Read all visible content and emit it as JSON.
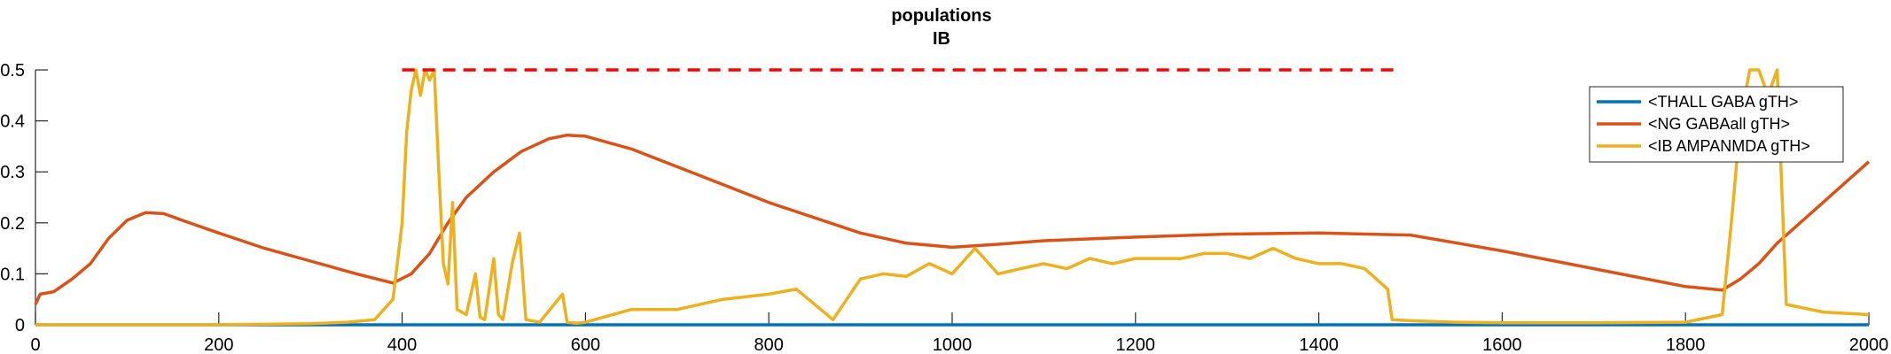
{
  "chart_data": {
    "type": "line",
    "title": "populations",
    "subtitle": "IB",
    "xlabel": "",
    "ylabel": "",
    "xlim": [
      0,
      2000
    ],
    "ylim": [
      0,
      0.5
    ],
    "xticks": [
      0,
      200,
      400,
      600,
      800,
      1000,
      1200,
      1400,
      1600,
      1800,
      2000
    ],
    "yticks": [
      0,
      0.1,
      0.2,
      0.3,
      0.4,
      0.5
    ],
    "ytick_labels": [
      "0",
      "0.1",
      "0.2",
      "0.3",
      "0.4",
      "0.5"
    ],
    "grid": false,
    "legend_position": "top-right",
    "series": [
      {
        "name": "<THALL GABA gTH>",
        "color": "#0072BD",
        "x": [
          0,
          2000
        ],
        "y": [
          0,
          0
        ]
      },
      {
        "name": "<NG GABAall gTH>",
        "color": "#D95319",
        "x": [
          0,
          5,
          20,
          40,
          60,
          80,
          100,
          120,
          140,
          160,
          200,
          250,
          300,
          350,
          390,
          410,
          430,
          450,
          470,
          500,
          530,
          560,
          580,
          600,
          650,
          700,
          800,
          900,
          950,
          1000,
          1050,
          1100,
          1200,
          1300,
          1400,
          1500,
          1600,
          1700,
          1800,
          1840,
          1860,
          1880,
          1900,
          1950,
          2000
        ],
        "y": [
          0.04,
          0.06,
          0.065,
          0.09,
          0.12,
          0.17,
          0.205,
          0.22,
          0.218,
          0.205,
          0.18,
          0.15,
          0.125,
          0.1,
          0.082,
          0.1,
          0.14,
          0.2,
          0.25,
          0.3,
          0.34,
          0.365,
          0.372,
          0.37,
          0.345,
          0.31,
          0.24,
          0.18,
          0.16,
          0.152,
          0.158,
          0.165,
          0.172,
          0.178,
          0.18,
          0.176,
          0.145,
          0.11,
          0.075,
          0.068,
          0.09,
          0.12,
          0.16,
          0.24,
          0.32
        ]
      },
      {
        "name": "<IB AMPANMDA gTH>",
        "color": "#EDB120",
        "x": [
          0,
          100,
          200,
          300,
          340,
          370,
          390,
          400,
          405,
          410,
          415,
          420,
          425,
          430,
          435,
          440,
          445,
          450,
          455,
          460,
          470,
          480,
          485,
          490,
          500,
          505,
          510,
          520,
          528,
          535,
          550,
          575,
          580,
          590,
          600,
          650,
          700,
          750,
          800,
          830,
          870,
          900,
          925,
          950,
          975,
          1000,
          1025,
          1035,
          1050,
          1075,
          1100,
          1125,
          1150,
          1175,
          1200,
          1225,
          1250,
          1275,
          1300,
          1325,
          1350,
          1375,
          1400,
          1425,
          1450,
          1475,
          1480,
          1500,
          1550,
          1600,
          1700,
          1800,
          1840,
          1850,
          1860,
          1870,
          1880,
          1890,
          1900,
          1910,
          1950,
          2000
        ],
        "y": [
          0,
          0,
          0,
          0.002,
          0.005,
          0.01,
          0.05,
          0.2,
          0.38,
          0.46,
          0.5,
          0.45,
          0.5,
          0.48,
          0.5,
          0.3,
          0.12,
          0.08,
          0.24,
          0.03,
          0.02,
          0.1,
          0.015,
          0.01,
          0.13,
          0.02,
          0.01,
          0.12,
          0.18,
          0.01,
          0.005,
          0.06,
          0.005,
          0.003,
          0.005,
          0.03,
          0.03,
          0.05,
          0.06,
          0.07,
          0.01,
          0.09,
          0.1,
          0.095,
          0.12,
          0.1,
          0.15,
          0.13,
          0.1,
          0.11,
          0.12,
          0.11,
          0.13,
          0.12,
          0.13,
          0.13,
          0.13,
          0.14,
          0.14,
          0.13,
          0.15,
          0.13,
          0.12,
          0.12,
          0.11,
          0.07,
          0.01,
          0.008,
          0.005,
          0.004,
          0.004,
          0.005,
          0.02,
          0.2,
          0.4,
          0.5,
          0.5,
          0.45,
          0.5,
          0.04,
          0.025,
          0.02
        ]
      }
    ],
    "reference_line": {
      "color": "#FF0000",
      "style": "dashed",
      "x": [
        400,
        1490
      ],
      "y": [
        0.5,
        0.5
      ]
    }
  }
}
